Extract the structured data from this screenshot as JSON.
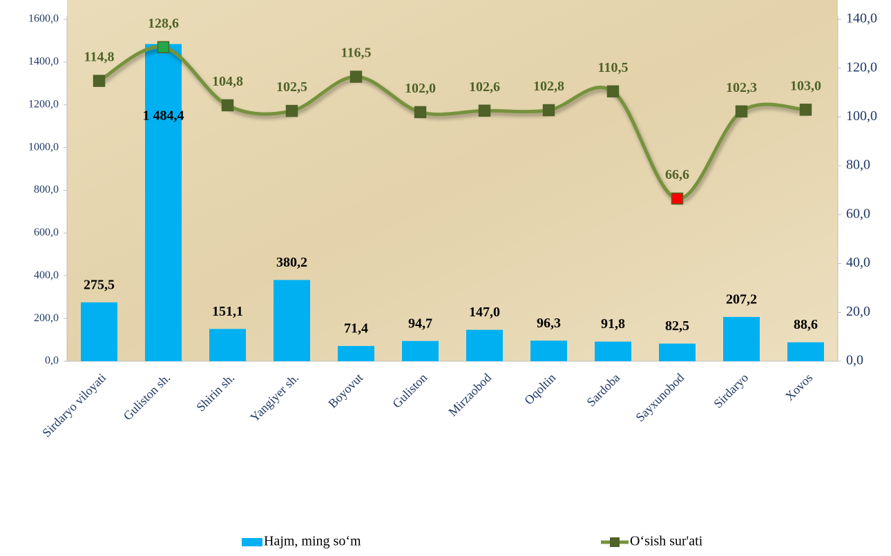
{
  "chart_data": {
    "type": "bar_line",
    "categories": [
      "Sirdaryo viloyati",
      "Guliston sh.",
      "Shirin sh.",
      "Yangiyer sh.",
      "Boyovut",
      "Guliston",
      "Mirzaobod",
      "Oqoltin",
      "Sardoba",
      "Sayxunobod",
      "Sirdaryo",
      "Xovos"
    ],
    "series": [
      {
        "name": "Hajm, ming so‘m",
        "type": "bar",
        "color": "#00b0f0",
        "values": [
          275.5,
          1484.4,
          151.1,
          380.2,
          71.4,
          94.7,
          147.0,
          96.3,
          91.8,
          82.5,
          207.2,
          88.6
        ],
        "value_labels": [
          "275,5",
          "1 484,4",
          "151,1",
          "380,2",
          "71,4",
          "94,7",
          "147,0",
          "96,3",
          "91,8",
          "82,5",
          "207,2",
          "88,6"
        ]
      },
      {
        "name": "O‘sish sur'ati",
        "type": "line",
        "axis": "y2",
        "color": "#76923c",
        "marker_colors": [
          "#4f6228",
          "#22a84a",
          "#4f6228",
          "#4f6228",
          "#4f6228",
          "#4f6228",
          "#4f6228",
          "#4f6228",
          "#4f6228",
          "#ff0000",
          "#4f6228",
          "#4f6228"
        ],
        "values": [
          114.8,
          128.6,
          104.8,
          102.5,
          116.5,
          102.0,
          102.6,
          102.8,
          110.5,
          66.6,
          102.3,
          103.0
        ],
        "value_labels": [
          "114,8",
          "128,6",
          "104,8",
          "102,5",
          "116,5",
          "102,0",
          "102,6",
          "102,8",
          "110,5",
          "66,6",
          "102,3",
          "103,0"
        ]
      }
    ],
    "ylim": [
      0,
      1600
    ],
    "yticks": [
      {
        "value": 0,
        "label": "0,0"
      },
      {
        "value": 200,
        "label": "200,0"
      },
      {
        "value": 400,
        "label": "400,0"
      },
      {
        "value": 600,
        "label": "600,0"
      },
      {
        "value": 800,
        "label": "800,0"
      },
      {
        "value": 1000,
        "label": "1000,0"
      },
      {
        "value": 1200,
        "label": "1200,0"
      },
      {
        "value": 1400,
        "label": "1400,0"
      },
      {
        "value": 1600,
        "label": "1600,0"
      }
    ],
    "y2lim": [
      0,
      140
    ],
    "y2ticks": [
      {
        "value": 0,
        "label": "0,0"
      },
      {
        "value": 20,
        "label": "20,0"
      },
      {
        "value": 40,
        "label": "40,0"
      },
      {
        "value": 60,
        "label": "60,0"
      },
      {
        "value": 80,
        "label": "80,0"
      },
      {
        "value": 100,
        "label": "100,0"
      },
      {
        "value": 120,
        "label": "120,0"
      },
      {
        "value": 140,
        "label": "140,0"
      }
    ],
    "legend": "bottom"
  }
}
